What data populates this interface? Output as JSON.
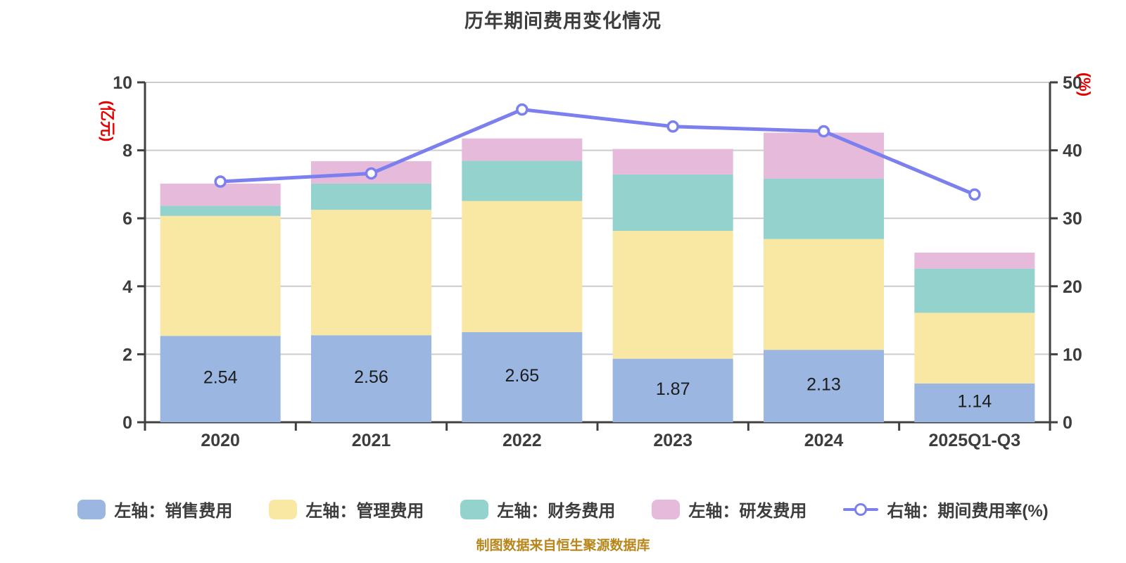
{
  "title": "历年期间费用变化情况",
  "source_note": "制图数据来自恒生聚源数据库",
  "colors": {
    "title_text": "#3d3d3d",
    "tick_text": "#3d3d3d",
    "axis_line": "#404040",
    "grid_line": "#cccccc",
    "axis_title_red": "#e60000",
    "bar_label": "#1c1c1c",
    "legend_text": "#3d3d3d",
    "source_text": "#b8861b",
    "background": "#ffffff"
  },
  "chart_data": {
    "type": "bar",
    "subtype": "stacked-bars-with-right-axis-line",
    "title": "历年期间费用变化情况",
    "categories": [
      "2020",
      "2021",
      "2022",
      "2023",
      "2024",
      "2025Q1-Q3"
    ],
    "bar_series": [
      {
        "name": "左轴：销售费用",
        "color": "#9bb6e1",
        "values": [
          2.54,
          2.56,
          2.65,
          1.87,
          2.13,
          1.14
        ],
        "data_labels": [
          "2.54",
          "2.56",
          "2.65",
          "1.87",
          "2.13",
          "1.14"
        ]
      },
      {
        "name": "左轴：管理费用",
        "color": "#f8e8a3",
        "values": [
          3.53,
          3.69,
          3.86,
          3.76,
          3.26,
          2.08
        ]
      },
      {
        "name": "左轴：财务费用",
        "color": "#94d2ce",
        "values": [
          0.3,
          0.77,
          1.18,
          1.66,
          1.78,
          1.3
        ]
      },
      {
        "name": "左轴：研发费用",
        "color": "#e6badb",
        "values": [
          0.65,
          0.66,
          0.66,
          0.75,
          1.35,
          0.47
        ]
      }
    ],
    "line_series": {
      "name": "右轴：期间费用率(%)",
      "type": "line",
      "color": "#7b80ee",
      "marker": "circle-open",
      "values": [
        35.4,
        36.6,
        46.0,
        43.5,
        42.8,
        33.5
      ]
    },
    "left_axis": {
      "title": "(亿元)",
      "min": 0,
      "max": 10,
      "ticks": [
        0,
        2,
        4,
        6,
        8,
        10
      ]
    },
    "right_axis": {
      "title": "(%)",
      "min": 0,
      "max": 50,
      "ticks": [
        0,
        10,
        20,
        30,
        40,
        50
      ]
    },
    "stacked": true,
    "grid": true,
    "legend_position": "bottom"
  }
}
